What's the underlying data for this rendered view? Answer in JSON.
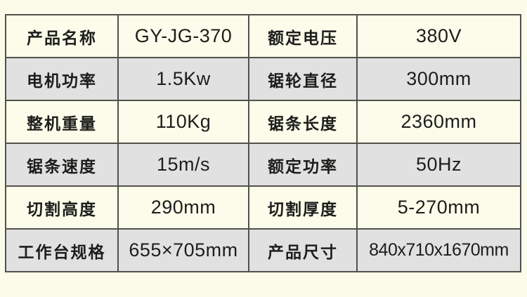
{
  "page": {
    "background_color": "#fbfbe9"
  },
  "table": {
    "border_color": "#51514b",
    "row_color_light": "#fcfceb",
    "row_color_gray": "#e1e1e1",
    "text_color": "#1d1d1b",
    "rows": [
      [
        "产品名称",
        "GY-JG-370",
        "额定电压",
        "380V"
      ],
      [
        "电机功率",
        "1.5Kw",
        "锯轮直径",
        "300mm"
      ],
      [
        "整机重量",
        "110Kg",
        "锯条长度",
        "2360mm"
      ],
      [
        "锯条速度",
        "15m/s",
        "额定功率",
        "50Hz"
      ],
      [
        "切割高度",
        "290mm",
        "切割厚度",
        "5-270mm"
      ],
      [
        "工作台规格",
        "655×705mm",
        "产品尺寸",
        "840x710x1670mm"
      ]
    ]
  }
}
